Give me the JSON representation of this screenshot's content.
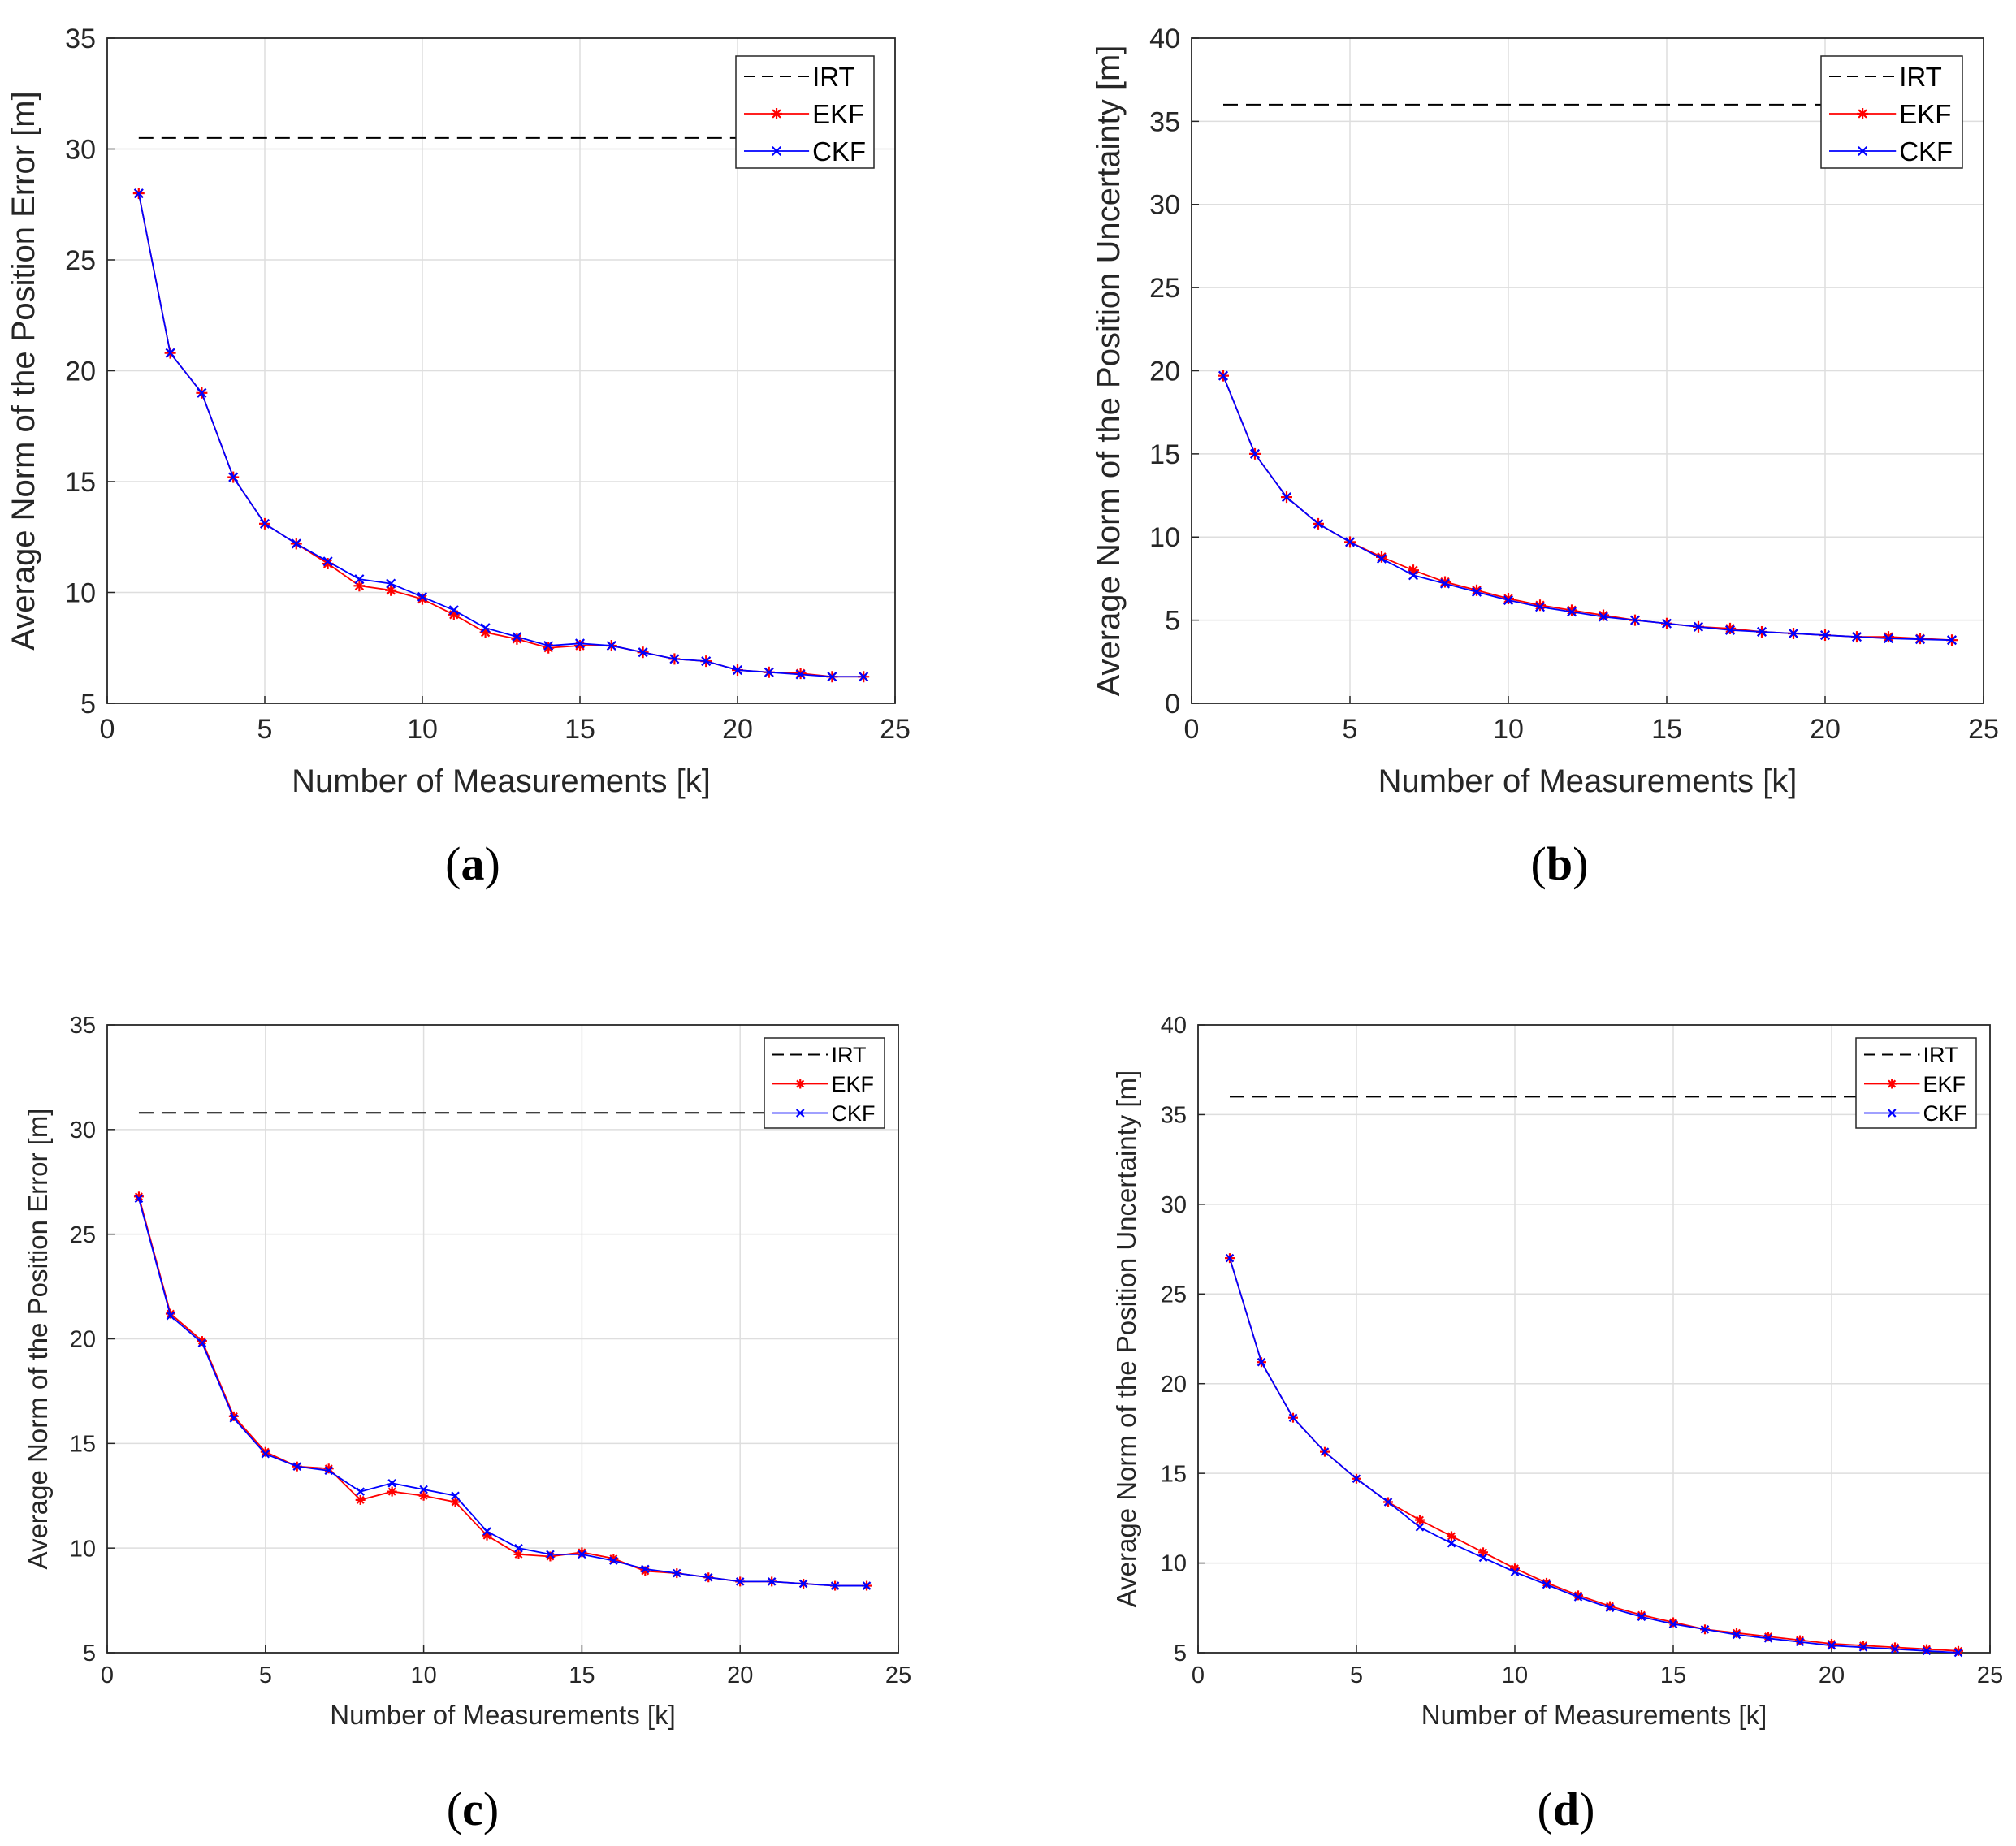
{
  "colors": {
    "irt": "#000000",
    "ekf": "#ff0000",
    "ckf": "#0000ff",
    "grid": "#dedede",
    "axis": "#262626"
  },
  "chart_data": [
    {
      "type": "line",
      "caption_letter": "a",
      "xlabel": "Number of Measurements [k]",
      "ylabel": "Average Norm of the Position Error [m]",
      "xlim": [
        0,
        25
      ],
      "ylim": [
        5,
        35
      ],
      "xticks": [
        0,
        5,
        10,
        15,
        20,
        25
      ],
      "yticks": [
        5,
        10,
        15,
        20,
        25,
        30,
        35
      ],
      "grid": true,
      "legend_position": "top-right",
      "x": [
        1,
        2,
        3,
        4,
        5,
        6,
        7,
        8,
        9,
        10,
        11,
        12,
        13,
        14,
        15,
        16,
        17,
        18,
        19,
        20,
        21,
        22,
        23,
        24
      ],
      "series": [
        {
          "name": "IRT",
          "style": "dashed",
          "color": "#000000",
          "values": [
            30.5,
            30.5
          ],
          "x": [
            1,
            24
          ]
        },
        {
          "name": "EKF",
          "style": "line-star",
          "color": "#ff0000",
          "values": [
            28.0,
            20.8,
            19.0,
            15.2,
            13.1,
            12.2,
            11.3,
            10.3,
            10.1,
            9.7,
            9.0,
            8.2,
            7.9,
            7.5,
            7.6,
            7.6,
            7.3,
            7.0,
            6.9,
            6.5,
            6.4,
            6.35,
            6.2,
            6.2
          ]
        },
        {
          "name": "CKF",
          "style": "line-x",
          "color": "#0000ff",
          "values": [
            28.0,
            20.8,
            19.0,
            15.2,
            13.1,
            12.2,
            11.4,
            10.6,
            10.4,
            9.8,
            9.2,
            8.4,
            8.0,
            7.6,
            7.7,
            7.6,
            7.3,
            7.0,
            6.9,
            6.5,
            6.4,
            6.3,
            6.2,
            6.2
          ]
        }
      ]
    },
    {
      "type": "line",
      "caption_letter": "b",
      "xlabel": "Number of Measurements [k]",
      "ylabel": "Average Norm of the Position Uncertainty [m]",
      "xlim": [
        0,
        25
      ],
      "ylim": [
        0,
        40
      ],
      "xticks": [
        0,
        5,
        10,
        15,
        20,
        25
      ],
      "yticks": [
        0,
        5,
        10,
        15,
        20,
        25,
        30,
        35,
        40
      ],
      "grid": true,
      "legend_position": "top-right",
      "x": [
        1,
        2,
        3,
        4,
        5,
        6,
        7,
        8,
        9,
        10,
        11,
        12,
        13,
        14,
        15,
        16,
        17,
        18,
        19,
        20,
        21,
        22,
        23,
        24
      ],
      "series": [
        {
          "name": "IRT",
          "style": "dashed",
          "color": "#000000",
          "values": [
            36,
            36
          ],
          "x": [
            1,
            24
          ]
        },
        {
          "name": "EKF",
          "style": "line-star",
          "color": "#ff0000",
          "values": [
            19.7,
            15.0,
            12.4,
            10.8,
            9.7,
            8.8,
            8.0,
            7.3,
            6.8,
            6.3,
            5.9,
            5.6,
            5.3,
            5.0,
            4.8,
            4.6,
            4.5,
            4.3,
            4.2,
            4.1,
            4.0,
            4.0,
            3.9,
            3.8
          ]
        },
        {
          "name": "CKF",
          "style": "line-x",
          "color": "#0000ff",
          "values": [
            19.7,
            15.0,
            12.4,
            10.8,
            9.7,
            8.7,
            7.7,
            7.2,
            6.7,
            6.2,
            5.8,
            5.5,
            5.2,
            5.0,
            4.8,
            4.6,
            4.4,
            4.3,
            4.2,
            4.1,
            4.0,
            3.9,
            3.85,
            3.8
          ]
        }
      ]
    },
    {
      "type": "line",
      "caption_letter": "c",
      "xlabel": "Number of Measurements [k]",
      "ylabel": "Average Norm of the Position Error [m]",
      "xlim": [
        0,
        25
      ],
      "ylim": [
        5,
        35
      ],
      "xticks": [
        0,
        5,
        10,
        15,
        20,
        25
      ],
      "yticks": [
        5,
        10,
        15,
        20,
        25,
        30,
        35
      ],
      "grid": true,
      "legend_position": "top-right",
      "x": [
        1,
        2,
        3,
        4,
        5,
        6,
        7,
        8,
        9,
        10,
        11,
        12,
        13,
        14,
        15,
        16,
        17,
        18,
        19,
        20,
        21,
        22,
        23,
        24
      ],
      "series": [
        {
          "name": "IRT",
          "style": "dashed",
          "color": "#000000",
          "values": [
            30.8,
            30.8
          ],
          "x": [
            1,
            24
          ]
        },
        {
          "name": "EKF",
          "style": "line-star",
          "color": "#ff0000",
          "values": [
            26.8,
            21.2,
            19.9,
            16.3,
            14.6,
            13.9,
            13.8,
            12.3,
            12.7,
            12.5,
            12.2,
            10.6,
            9.7,
            9.6,
            9.8,
            9.5,
            8.9,
            8.8,
            8.6,
            8.4,
            8.4,
            8.3,
            8.2,
            8.2
          ]
        },
        {
          "name": "CKF",
          "style": "line-x",
          "color": "#0000ff",
          "values": [
            26.7,
            21.1,
            19.8,
            16.2,
            14.5,
            13.9,
            13.7,
            12.7,
            13.1,
            12.8,
            12.5,
            10.8,
            10.0,
            9.7,
            9.7,
            9.4,
            9.0,
            8.8,
            8.6,
            8.4,
            8.4,
            8.3,
            8.2,
            8.2
          ]
        }
      ]
    },
    {
      "type": "line",
      "caption_letter": "d",
      "xlabel": "Number of Measurements [k]",
      "ylabel": "Average Norm of the Position Uncertainty [m]",
      "xlim": [
        0,
        25
      ],
      "ylim": [
        5,
        40
      ],
      "xticks": [
        0,
        5,
        10,
        15,
        20,
        25
      ],
      "yticks": [
        5,
        10,
        15,
        20,
        25,
        30,
        35,
        40
      ],
      "grid": true,
      "legend_position": "top-right",
      "x": [
        1,
        2,
        3,
        4,
        5,
        6,
        7,
        8,
        9,
        10,
        11,
        12,
        13,
        14,
        15,
        16,
        17,
        18,
        19,
        20,
        21,
        22,
        23,
        24
      ],
      "series": [
        {
          "name": "IRT",
          "style": "dashed",
          "color": "#000000",
          "values": [
            36,
            36
          ],
          "x": [
            1,
            24
          ]
        },
        {
          "name": "EKF",
          "style": "line-star",
          "color": "#ff0000",
          "values": [
            27.0,
            21.2,
            18.1,
            16.2,
            14.7,
            13.4,
            12.4,
            11.5,
            10.6,
            9.7,
            8.9,
            8.2,
            7.6,
            7.1,
            6.7,
            6.3,
            6.1,
            5.9,
            5.7,
            5.5,
            5.4,
            5.3,
            5.2,
            5.1
          ]
        },
        {
          "name": "CKF",
          "style": "line-x",
          "color": "#0000ff",
          "values": [
            27.0,
            21.2,
            18.1,
            16.2,
            14.7,
            13.4,
            12.0,
            11.1,
            10.3,
            9.5,
            8.8,
            8.1,
            7.5,
            7.0,
            6.6,
            6.3,
            6.0,
            5.8,
            5.6,
            5.4,
            5.3,
            5.2,
            5.1,
            5.0
          ]
        }
      ]
    }
  ]
}
